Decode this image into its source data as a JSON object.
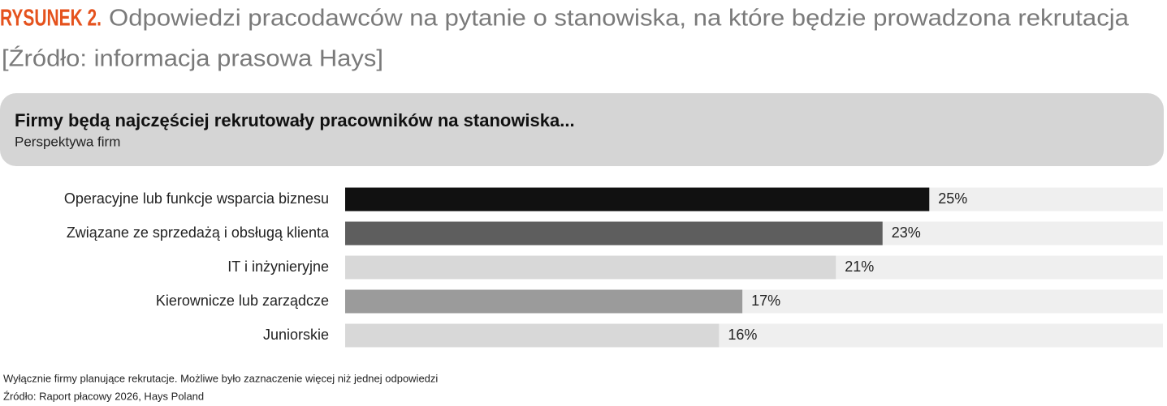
{
  "figure": {
    "label": "RYSUNEK 2.",
    "caption": "Odpowiedzi pracodawców na pytanie o stanowiska, na które będzie prowadzona rekrutacja",
    "source": "[Źródło: informacja prasowa Hays]"
  },
  "chart_data": {
    "type": "hbar",
    "title": "Firmy będą najczęściej rekrutowały pracowników na stanowiska...",
    "subtitle": "Perspektywa firm",
    "categories": [
      "Operacyjne lub funkcje wsparcia biznesu",
      "Związane ze sprzedażą i obsługą klienta",
      "IT i inżynieryjne",
      "Kierownicze lub zarządcze",
      "Juniorskie"
    ],
    "values": [
      25,
      23,
      21,
      17,
      16
    ],
    "value_labels": [
      "25%",
      "23%",
      "21%",
      "17%",
      "16%"
    ],
    "colors": [
      "#111111",
      "#5e5e5e",
      "#d8d8d8",
      "#9b9b9b",
      "#d8d8d8"
    ],
    "track_color": "#efefef",
    "xlim": [
      0,
      35
    ]
  },
  "notes": [
    "Wyłącznie firmy planujące rekrutacje. Możliwe było zaznaczenie więcej niż jednej odpowiedzi",
    "Źródło: Raport płacowy 2026, Hays Poland"
  ]
}
